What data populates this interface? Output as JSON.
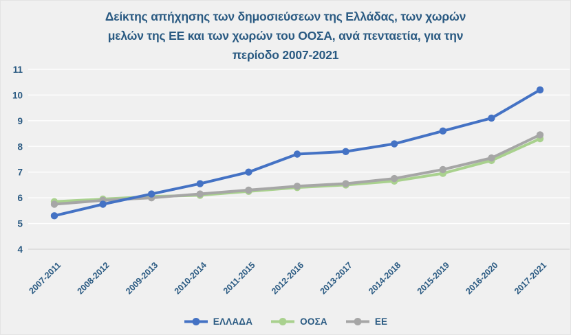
{
  "header": {
    "title_lines": [
      "Δείκτης απήχησης των δημοσιεύσεων της Ελλάδας, των χωρών",
      "μελών της ΕΕ και των χωρών του ΟΟΣΑ, ανά πενταετία, για την",
      "περίοδο 2007-2021"
    ]
  },
  "colors": {
    "background": "#F0F0F0",
    "gridline": "#FFFFFF",
    "axis_line": "#D9D9D9",
    "text": "#2A5A82"
  },
  "chart_data": {
    "type": "line",
    "title": "Δείκτης απήχησης των δημοσιεύσεων της Ελλάδας, των χωρών μελών της ΕΕ και των χωρών του ΟΟΣΑ, ανά πενταετία, για την περίοδο 2007-2021",
    "categories": [
      "2007-2011",
      "2008-2012",
      "2009-2013",
      "2010-2014",
      "2011-2015",
      "2012-2016",
      "2013-2017",
      "2014-2018",
      "2015-2019",
      "2016-2020",
      "2017-2021"
    ],
    "series": [
      {
        "name": "ΕΛΛΑΔΑ",
        "color": "#4472C4",
        "values": [
          5.3,
          5.75,
          6.15,
          6.55,
          7.0,
          7.7,
          7.8,
          8.1,
          8.6,
          9.1,
          10.2
        ]
      },
      {
        "name": "ΟΟΣΑ",
        "color": "#A9D18E",
        "values": [
          5.85,
          5.95,
          6.05,
          6.1,
          6.25,
          6.4,
          6.5,
          6.65,
          6.95,
          7.45,
          8.3
        ]
      },
      {
        "name": "ΕΕ",
        "color": "#A6A6A6",
        "values": [
          5.75,
          5.9,
          6.0,
          6.15,
          6.3,
          6.45,
          6.55,
          6.75,
          7.1,
          7.55,
          8.45
        ]
      }
    ],
    "xlabel": "",
    "ylabel": "",
    "ylim": [
      4,
      11
    ],
    "yticks": [
      4,
      5,
      6,
      7,
      8,
      9,
      10,
      11
    ],
    "grid": true,
    "legend_position": "bottom"
  },
  "legend": {
    "items": [
      {
        "label": "ΕΛΛΑΔΑ",
        "color": "#4472C4"
      },
      {
        "label": "ΟΟΣΑ",
        "color": "#A9D18E"
      },
      {
        "label": "ΕΕ",
        "color": "#A6A6A6"
      }
    ]
  }
}
